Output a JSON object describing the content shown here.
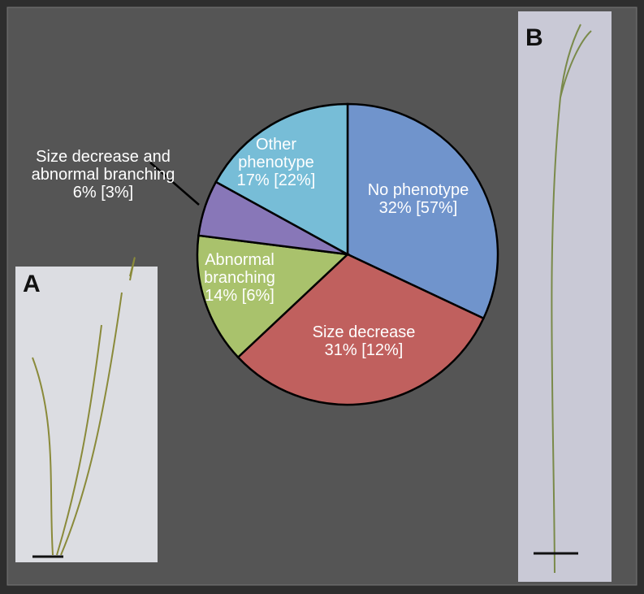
{
  "chart_data": {
    "type": "pie",
    "categories": [
      "No phenotype",
      "Size decrease",
      "Abnormal branching",
      "Size decrease and abnormal branching",
      "Other phenotype"
    ],
    "values": [
      32,
      31,
      14,
      6,
      17
    ],
    "value_labels": [
      "32%",
      "31%",
      "14%",
      "6%",
      "17%"
    ],
    "secondary_labels": [
      "[57%]",
      "[12%]",
      "[6%]",
      "[3%]",
      "[22%]"
    ],
    "colors": [
      "#7094cc",
      "#c0605e",
      "#a9c26c",
      "#8877b8",
      "#77bdd7"
    ]
  },
  "panels": [
    {
      "label": "A"
    },
    {
      "label": "B"
    }
  ]
}
